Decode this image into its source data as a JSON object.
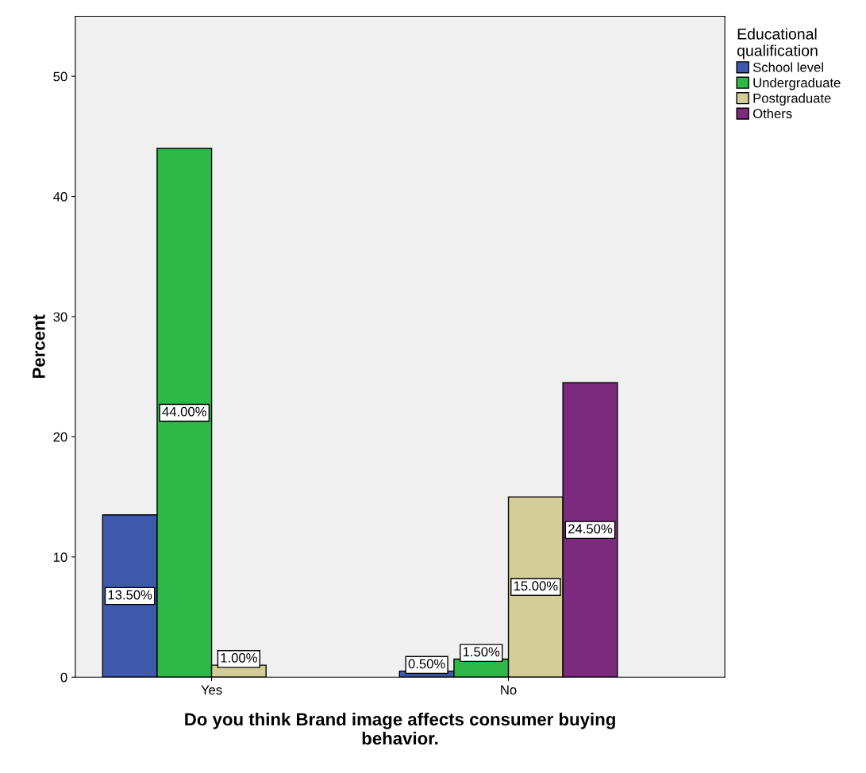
{
  "chart_data": {
    "type": "bar",
    "xlabel": "Do you think Brand image affects consumer buying behavior.",
    "ylabel": "Percent",
    "categories": [
      "Yes",
      "No"
    ],
    "ylim": [
      0,
      55
    ],
    "yticks": [
      0,
      10,
      20,
      30,
      40,
      50
    ],
    "legend_title": "Educational qualification",
    "legend": "top right",
    "grid": false,
    "series": [
      {
        "name": "School level",
        "color": "#3e58ac",
        "values": [
          13.5,
          0.5
        ],
        "value_labels": [
          "13.50%",
          "0.50%"
        ]
      },
      {
        "name": "Undergraduate",
        "color": "#2eb848",
        "values": [
          44.0,
          1.5
        ],
        "value_labels": [
          "44.00%",
          "1.50%"
        ]
      },
      {
        "name": "Postgraduate",
        "color": "#d3ce97",
        "values": [
          1.0,
          15.0
        ],
        "value_labels": [
          "1.00%",
          "15.00%"
        ]
      },
      {
        "name": "Others",
        "color": "#7b2a7d",
        "values": [
          null,
          24.5
        ],
        "value_labels": [
          null,
          "24.50%"
        ]
      }
    ]
  }
}
